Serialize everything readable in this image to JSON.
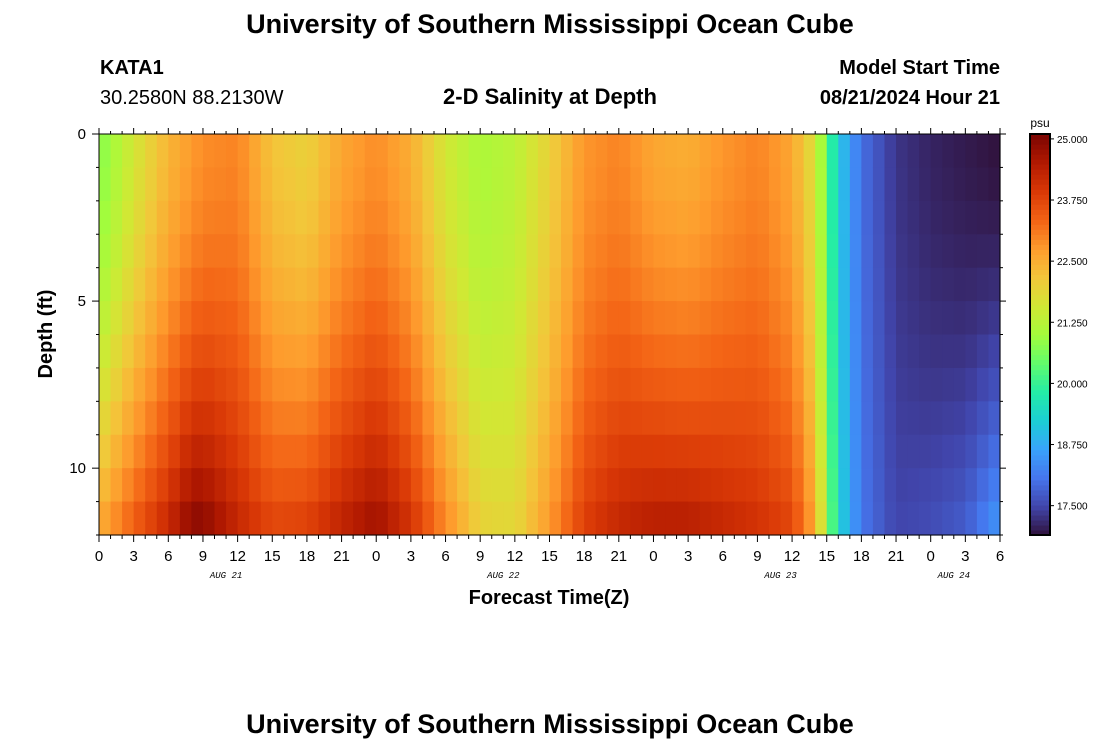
{
  "header": {
    "title": "University of Southern Mississippi Ocean Cube",
    "station_id": "KATA1",
    "coordinates": "30.2580N  88.2130W",
    "plot_title": "2-D Salinity at Depth",
    "start_label": "Model Start Time",
    "start_value": "08/21/2024 Hour 21"
  },
  "footer": {
    "title": "University of Southern Mississippi Ocean Cube"
  },
  "chart_data": {
    "type": "heatmap",
    "title": "2-D Salinity at Depth",
    "xlabel": "Forecast Time(Z)",
    "ylabel": "Depth (ft)",
    "x_ticks": [
      "0",
      "3",
      "6",
      "9",
      "12",
      "15",
      "18",
      "21",
      "0",
      "3",
      "6",
      "9",
      "12",
      "15",
      "18",
      "21",
      "0",
      "3",
      "6",
      "9",
      "12",
      "15",
      "18",
      "21",
      "0",
      "3",
      "6"
    ],
    "date_labels": [
      {
        "label": "AUG 21",
        "at_hour": 11
      },
      {
        "label": "AUG 22",
        "at_hour": 35
      },
      {
        "label": "AUG 23",
        "at_hour": 59
      },
      {
        "label": "AUG 24",
        "at_hour": 74
      }
    ],
    "x_range_hours": [
      0,
      78
    ],
    "y_ticks": [
      0,
      5,
      10
    ],
    "y_range_ft": [
      0,
      12
    ],
    "colorbar": {
      "unit": "psu",
      "ticks": [
        "25.000",
        "23.750",
        "22.500",
        "21.250",
        "20.000",
        "18.750",
        "17.500"
      ],
      "range": [
        16.9,
        25.1
      ]
    },
    "series": [
      {
        "name": "surface",
        "depth_profile": "surface",
        "points": [
          [
            0,
            20.7
          ],
          [
            3,
            21.6
          ],
          [
            6,
            22.4
          ],
          [
            9,
            22.9
          ],
          [
            12,
            23.0
          ],
          [
            15,
            22.2
          ],
          [
            18,
            22.0
          ],
          [
            21,
            22.6
          ],
          [
            24,
            22.9
          ],
          [
            27,
            22.5
          ],
          [
            30,
            21.6
          ],
          [
            33,
            21.1
          ],
          [
            36,
            21.3
          ],
          [
            39,
            22.0
          ],
          [
            42,
            22.8
          ],
          [
            45,
            23.0
          ],
          [
            48,
            22.6
          ],
          [
            51,
            22.5
          ],
          [
            54,
            22.8
          ],
          [
            57,
            23.0
          ],
          [
            60,
            22.6
          ],
          [
            62,
            21.7
          ],
          [
            63,
            20.4
          ],
          [
            64,
            19.2
          ],
          [
            66,
            18.0
          ],
          [
            69,
            17.3
          ],
          [
            72,
            17.1
          ],
          [
            75,
            17.0
          ],
          [
            78,
            16.9
          ]
        ]
      },
      {
        "name": "bottom",
        "depth_profile": "bottom",
        "points": [
          [
            0,
            22.6
          ],
          [
            3,
            23.5
          ],
          [
            6,
            24.3
          ],
          [
            8,
            25.0
          ],
          [
            9,
            25.0
          ],
          [
            12,
            24.3
          ],
          [
            15,
            23.8
          ],
          [
            18,
            23.9
          ],
          [
            21,
            24.4
          ],
          [
            24,
            24.8
          ],
          [
            27,
            24.1
          ],
          [
            30,
            23.0
          ],
          [
            33,
            22.0
          ],
          [
            36,
            21.9
          ],
          [
            39,
            22.8
          ],
          [
            42,
            23.9
          ],
          [
            45,
            24.3
          ],
          [
            48,
            24.5
          ],
          [
            51,
            24.5
          ],
          [
            54,
            24.3
          ],
          [
            57,
            24.1
          ],
          [
            60,
            23.8
          ],
          [
            62,
            22.6
          ],
          [
            63,
            21.0
          ],
          [
            64,
            19.4
          ],
          [
            66,
            18.1
          ],
          [
            69,
            17.5
          ],
          [
            72,
            17.6
          ],
          [
            75,
            17.8
          ],
          [
            78,
            18.6
          ]
        ]
      }
    ]
  },
  "colors": {
    "colormap": [
      "#30123b",
      "#4145ab",
      "#4675ed",
      "#39a2fc",
      "#1bcfd4",
      "#24eca6",
      "#61fc6c",
      "#a4fc3b",
      "#d1e834",
      "#f3c63a",
      "#fe9b2d",
      "#f36315",
      "#d93806",
      "#b11901",
      "#7a0402"
    ],
    "axis": "#000000",
    "background": "#ffffff"
  }
}
